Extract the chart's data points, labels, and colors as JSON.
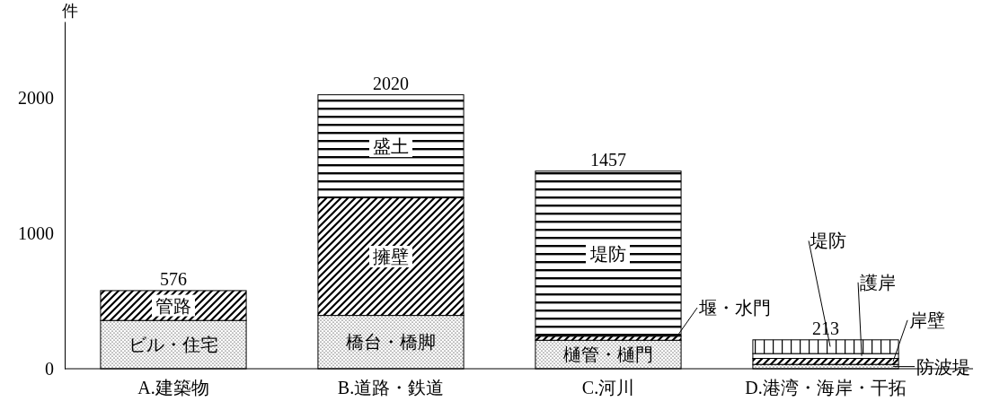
{
  "chart_data": {
    "type": "bar",
    "stacked": true,
    "categories": [
      "A.建築物",
      "B.道路・鉄道",
      "C.河川",
      "D.港湾・海岸・干拓"
    ],
    "ylabel": "件",
    "ylim": [
      0,
      2560
    ],
    "yticks": [
      0,
      1000,
      2000
    ],
    "grid": false,
    "series": [
      {
        "name": "ビル・住宅",
        "color": "#000000",
        "values": [
          356,
          null,
          null,
          null
        ]
      },
      {
        "name": "管路",
        "color": "#000000",
        "values": [
          220,
          null,
          null,
          null
        ]
      },
      {
        "name": "橋台・橋脚",
        "color": "#000000",
        "values": [
          null,
          393,
          null,
          null
        ]
      },
      {
        "name": "擁壁",
        "color": "#000000",
        "values": [
          null,
          867,
          null,
          null
        ]
      },
      {
        "name": "盛土",
        "color": "#000000",
        "values": [
          null,
          760,
          null,
          null
        ]
      },
      {
        "name": "樋管・樋門",
        "color": "#000000",
        "values": [
          null,
          null,
          210,
          null
        ]
      },
      {
        "name": "堰・水門",
        "color": "#000000",
        "values": [
          null,
          null,
          30,
          null
        ]
      },
      {
        "name": "堤防",
        "color": "#000000",
        "values": [
          null,
          null,
          1217,
          null
        ]
      },
      {
        "name": "防波堤",
        "color": "#000000",
        "values": [
          null,
          null,
          null,
          32
        ]
      },
      {
        "name": "岸壁",
        "color": "#000000",
        "values": [
          null,
          null,
          null,
          44
        ]
      },
      {
        "name": "護岸",
        "color": "#000000",
        "values": [
          null,
          null,
          null,
          36
        ]
      },
      {
        "name": "堤防",
        "color": "#000000",
        "values": [
          null,
          null,
          null,
          101
        ]
      }
    ],
    "totals": [
      "576",
      "2020",
      "1457",
      "213"
    ]
  }
}
